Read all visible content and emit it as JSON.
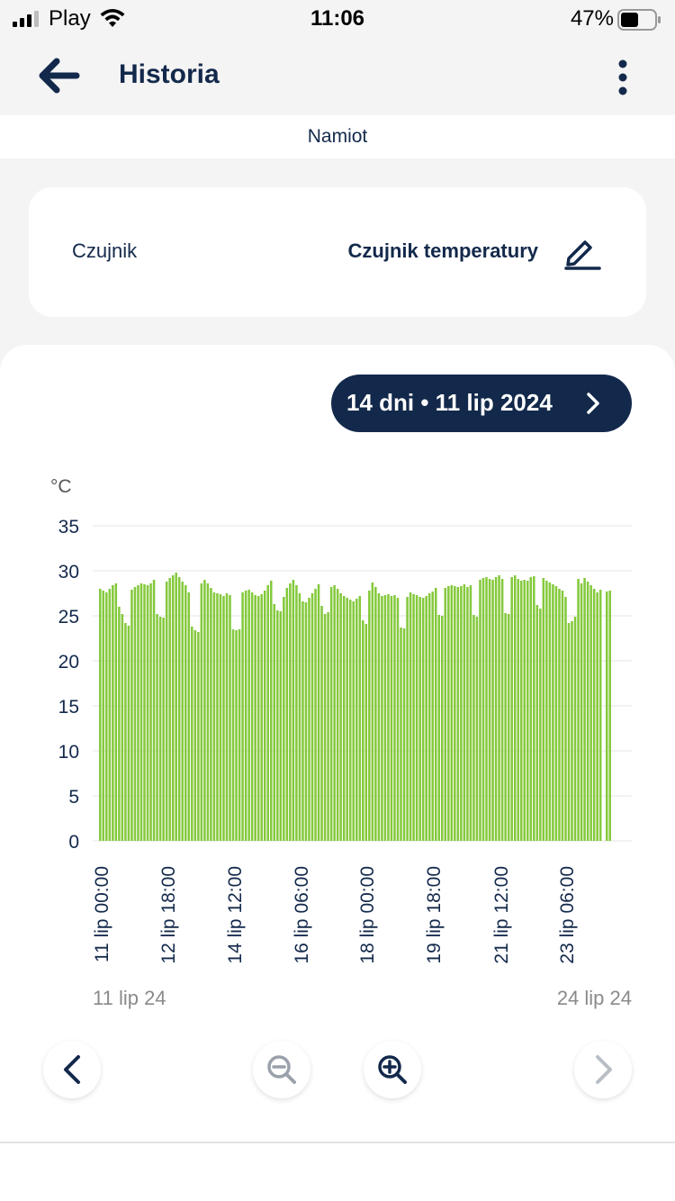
{
  "status_bar": {
    "carrier": "Play",
    "time": "11:06",
    "battery": "47%"
  },
  "header": {
    "title": "Historia"
  },
  "subtitle": "Namiot",
  "sensor": {
    "label": "Czujnik",
    "value": "Czujnik temperatury"
  },
  "range_button": {
    "label": "14 dni • 11 lip 2024"
  },
  "chart_data": {
    "type": "bar",
    "ylabel": "°C",
    "ylim": [
      0,
      35
    ],
    "yticks": [
      "0",
      "5",
      "10",
      "15",
      "20",
      "25",
      "30",
      "35"
    ],
    "color": "#84c93c",
    "x_tick_labels": [
      "11 lip 00:00",
      "12 lip 18:00",
      "14 lip 12:00",
      "16 lip 06:00",
      "18 lip 00:00",
      "19 lip 18:00",
      "21 lip 12:00",
      "23 lip 06:00"
    ],
    "range_start": "11 lip 24",
    "range_end": "24 lip 24",
    "x_unit": "hours since 11 lip 00:00",
    "values": [
      28,
      27.8,
      27.6,
      28,
      28.4,
      28.6,
      26,
      25.2,
      24.2,
      23.9,
      27.9,
      28.2,
      28.4,
      28.6,
      28.5,
      28.4,
      28.6,
      29,
      25.2,
      24.9,
      24.8,
      28.8,
      29.2,
      29.5,
      29.8,
      29.3,
      28.8,
      28.4,
      27.6,
      23.8,
      23.4,
      23.2,
      28.6,
      29,
      28.6,
      28.1,
      27.6,
      27.5,
      27.4,
      27.2,
      27.5,
      27.3,
      23.5,
      23.4,
      23.5,
      27.6,
      27.8,
      27.9,
      27.6,
      27.3,
      27.2,
      27.4,
      27.8,
      28.4,
      28.9,
      26.3,
      25.6,
      25.5,
      27.1,
      28.1,
      28.6,
      29,
      28.4,
      27.5,
      26.6,
      26.5,
      27,
      27.5,
      28,
      28.5,
      26.1,
      25.2,
      25.4,
      28.2,
      28.4,
      28,
      27.5,
      27.2,
      27,
      26.8,
      26.6,
      26.9,
      27.2,
      24.5,
      24.1,
      27.8,
      28.7,
      28.2,
      27.5,
      27.2,
      27.3,
      27.4,
      27.2,
      27.3,
      27,
      23.7,
      23.6,
      27.1,
      27.6,
      27.4,
      27.3,
      27.1,
      27,
      27.2,
      27.5,
      27.7,
      28.1,
      25.1,
      25,
      28.1,
      28.3,
      28.4,
      28.3,
      28.2,
      28.3,
      28.5,
      28.2,
      28.4,
      25.1,
      24.9,
      29,
      29.2,
      29.3,
      29.1,
      29,
      29.3,
      29.5,
      29.1,
      25.3,
      25.2,
      29.3,
      29.5,
      29.1,
      28.9,
      29,
      28.9,
      29.3,
      29.4,
      26.2,
      25.8,
      29.2,
      28.9,
      28.7,
      28.5,
      28.3,
      28,
      27.8,
      27.1,
      24.2,
      24.4,
      24.9,
      29.1,
      28.6,
      29.2,
      28.8,
      28.4,
      28,
      27.6,
      27.9,
      null,
      27.7,
      27.8
    ]
  },
  "footer": {}
}
